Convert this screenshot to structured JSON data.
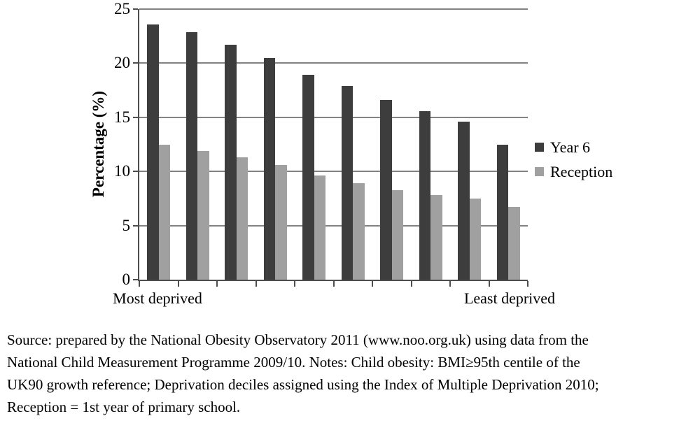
{
  "chart_data": {
    "type": "bar",
    "title": "",
    "ylabel": "Percentage (%)",
    "xlabel": "",
    "ylim": [
      0,
      25
    ],
    "yticks": [
      0,
      5,
      10,
      15,
      20,
      25
    ],
    "grid": true,
    "legend_position": "right",
    "categories": [
      "1",
      "2",
      "3",
      "4",
      "5",
      "6",
      "7",
      "8",
      "9",
      "10"
    ],
    "x_end_labels": {
      "left": "Most deprived",
      "right": "Least deprived"
    },
    "series": [
      {
        "name": "Year 6",
        "color": "#3d3d3d",
        "values": [
          23.6,
          22.9,
          21.7,
          20.5,
          18.9,
          17.9,
          16.6,
          15.6,
          14.6,
          12.5
        ]
      },
      {
        "name": "Reception",
        "color": "#a0a0a0",
        "values": [
          12.5,
          11.9,
          11.3,
          10.6,
          9.6,
          8.9,
          8.3,
          7.8,
          7.5,
          6.7
        ]
      }
    ],
    "axis_color": "#4d4d4d",
    "grid_color": "#828282"
  },
  "caption": {
    "lines": [
      "Source: prepared by the National Obesity Observatory 2011 (www.noo.org.uk) using data from the",
      "National Child Measurement Programme 2009/10. Notes: Child obesity: BMI≥95th centile of the",
      "UK90 growth reference; Deprivation deciles assigned using the Index of Multiple Deprivation 2010;",
      "Reception = 1st year of primary school."
    ]
  }
}
